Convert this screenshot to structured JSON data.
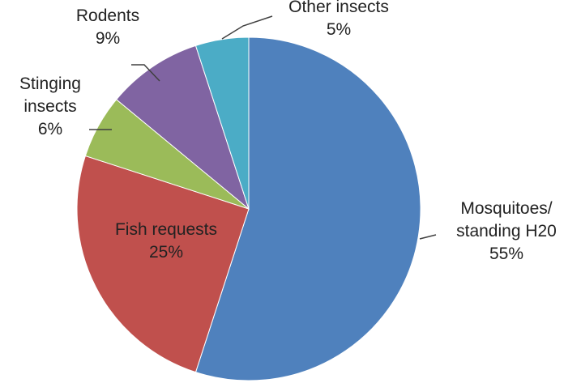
{
  "chart_data": {
    "type": "pie",
    "title": "",
    "start_angle_deg": 0,
    "direction": "clockwise",
    "slices": [
      {
        "name": "Mosquitoes/ standing H20",
        "label_lines": [
          "Mosquitoes/",
          "standing H20"
        ],
        "value_label": "55%",
        "value": 55,
        "color": "#4F81BD"
      },
      {
        "name": "Fish requests",
        "label_lines": [
          "Fish requests"
        ],
        "value_label": "25%",
        "value": 25,
        "color": "#C0504D"
      },
      {
        "name": "Stinging insects",
        "label_lines": [
          "Stinging",
          "insects"
        ],
        "value_label": "6%",
        "value": 6,
        "color": "#9BBB59"
      },
      {
        "name": "Rodents",
        "label_lines": [
          "Rodents"
        ],
        "value_label": "9%",
        "value": 9,
        "color": "#8064A2"
      },
      {
        "name": "Other insects",
        "label_lines": [
          "Other insects"
        ],
        "value_label": "5%",
        "value": 5,
        "color": "#4BACC6"
      }
    ]
  }
}
